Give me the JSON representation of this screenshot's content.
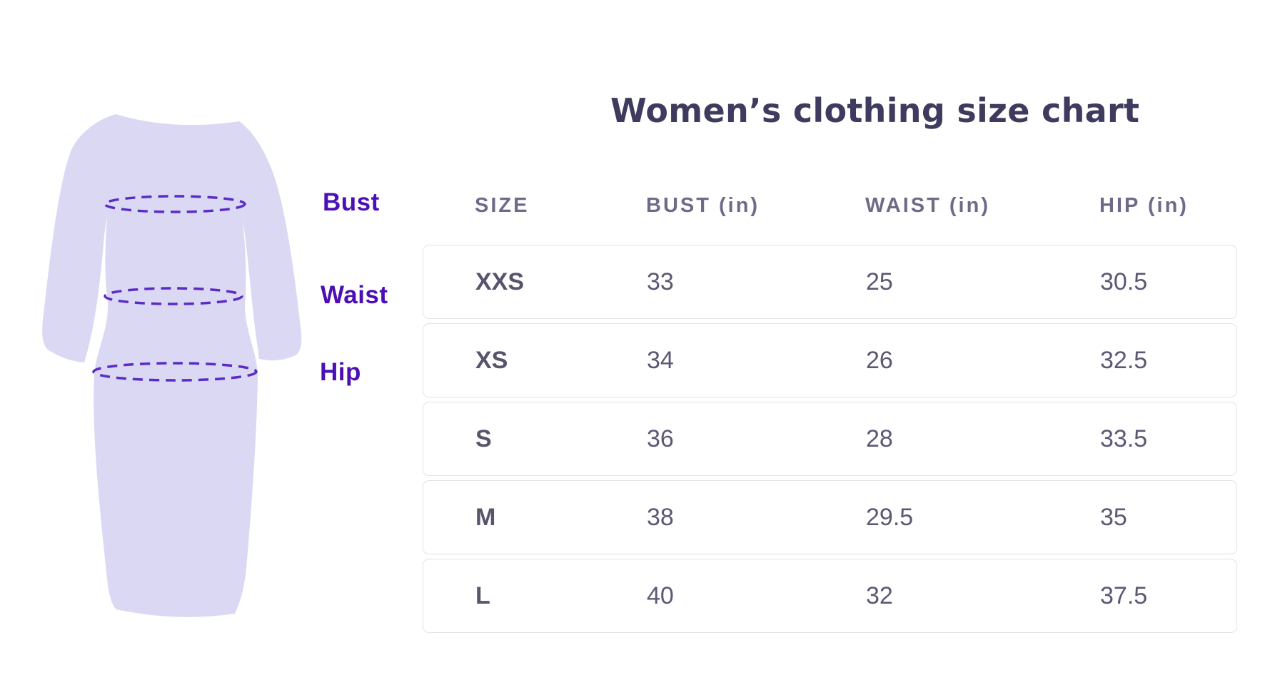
{
  "title": "Women’s clothing size chart",
  "figure": {
    "labels": {
      "bust": "Bust",
      "waist": "Waist",
      "hip": "Hip"
    }
  },
  "colors": {
    "dress_fill": "#dbd8f4",
    "measure_line": "#5b2cc4",
    "measure_label_text": "#4b10b5",
    "title_text": "#3e3b5e",
    "header_text": "#6e6b88",
    "cell_text": "#5b5874",
    "row_border": "#e3e2e8"
  },
  "chart_data": {
    "type": "table",
    "title": "Women’s clothing size chart",
    "columns": [
      "SIZE",
      "BUST (in)",
      "WAIST (in)",
      "HIP (in)"
    ],
    "rows": [
      [
        "XXS",
        "33",
        "25",
        "30.5"
      ],
      [
        "XS",
        "34",
        "26",
        "32.5"
      ],
      [
        "S",
        "36",
        "28",
        "33.5"
      ],
      [
        "M",
        "38",
        "29.5",
        "35"
      ],
      [
        "L",
        "40",
        "32",
        "37.5"
      ]
    ]
  }
}
